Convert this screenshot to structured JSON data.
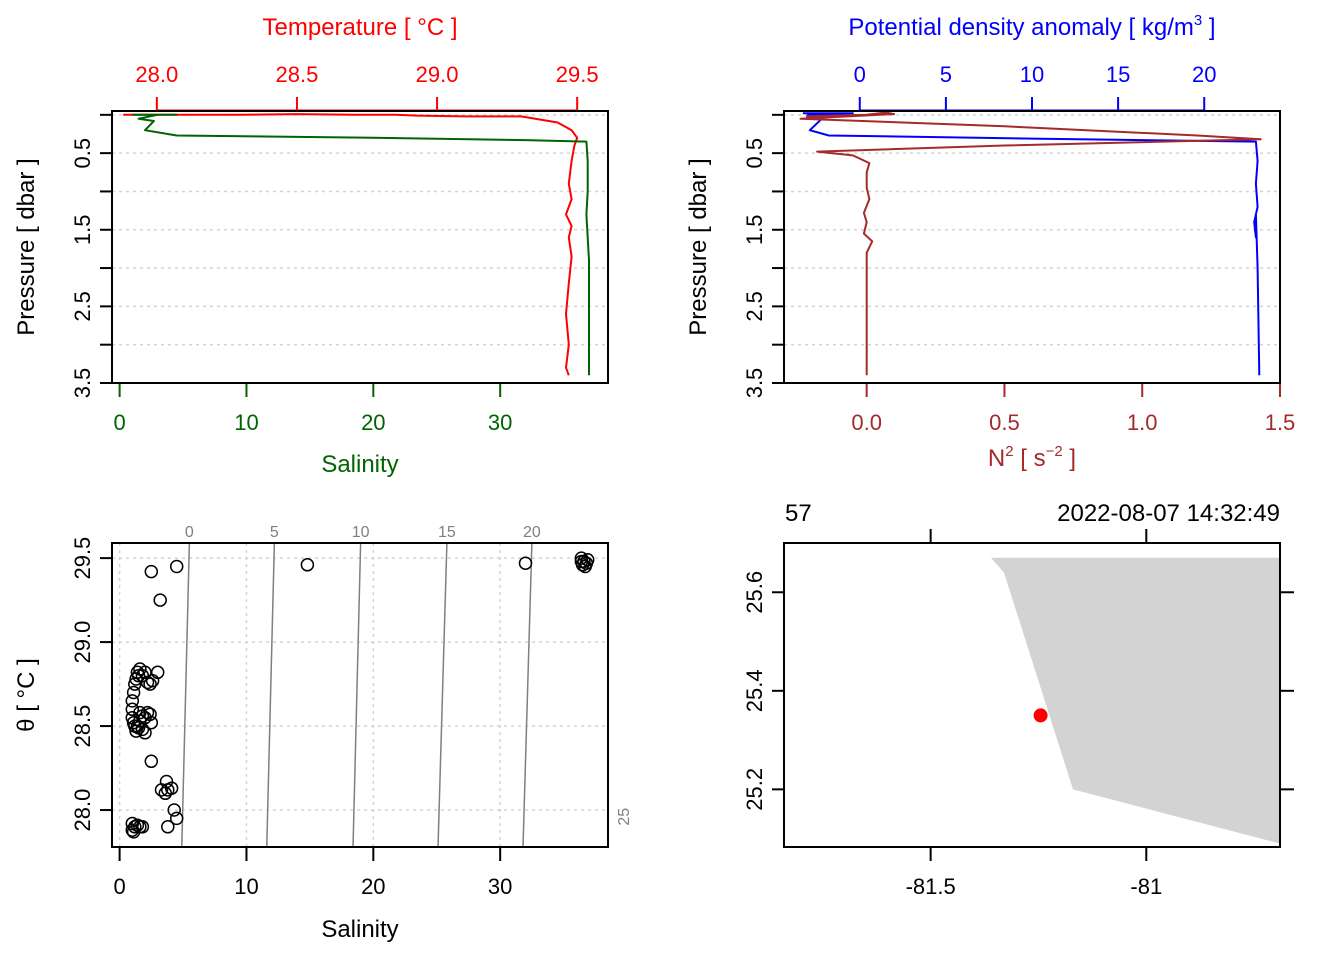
{
  "chart_data": [
    {
      "id": "profile-ts",
      "type": "line",
      "ylabel": "Pressure [ dbar ]",
      "ylim": [
        3.5,
        -0.05
      ],
      "y_ticks": [
        0,
        0.5,
        1,
        1.5,
        2,
        2.5,
        3,
        3.5
      ],
      "y_tick_labels": [
        "",
        "0.5",
        "",
        "1.5",
        "",
        "2.5",
        "",
        "3.5"
      ],
      "grid": true,
      "top_axis": {
        "title": "Temperature [ °C ]",
        "color": "#ff0000",
        "lim": [
          27.84,
          29.61
        ],
        "ticks": [
          28.0,
          28.5,
          29.0,
          29.5
        ],
        "tick_labels": [
          "28.0",
          "28.5",
          "29.0",
          "29.5"
        ]
      },
      "bottom_axis": {
        "title": "Salinity",
        "color": "#006400",
        "lim": [
          -0.6,
          38.5
        ],
        "ticks": [
          0,
          10,
          20,
          30
        ],
        "tick_labels": [
          "0",
          "10",
          "20",
          "30"
        ]
      },
      "series": [
        {
          "name": "Temperature",
          "axis": "top",
          "color": "#ff0000",
          "points": [
            [
              27.88,
              0.0
            ],
            [
              28.0,
              0.0
            ],
            [
              28.3,
              0.0
            ],
            [
              28.5,
              -0.01
            ],
            [
              28.7,
              0.0
            ],
            [
              28.85,
              0.0
            ],
            [
              28.93,
              0.01
            ],
            [
              29.1,
              0.02
            ],
            [
              29.3,
              0.02
            ],
            [
              29.43,
              0.1
            ],
            [
              29.48,
              0.2
            ],
            [
              29.5,
              0.3
            ],
            [
              29.49,
              0.4
            ],
            [
              29.48,
              0.6
            ],
            [
              29.47,
              0.9
            ],
            [
              29.48,
              1.1
            ],
            [
              29.46,
              1.3
            ],
            [
              29.48,
              1.45
            ],
            [
              29.47,
              1.6
            ],
            [
              29.48,
              1.85
            ],
            [
              29.47,
              2.2
            ],
            [
              29.46,
              2.6
            ],
            [
              29.47,
              3.0
            ],
            [
              29.46,
              3.3
            ],
            [
              29.47,
              3.4
            ]
          ]
        },
        {
          "name": "Salinity",
          "axis": "bottom",
          "color": "#006400",
          "points": [
            [
              1.0,
              0.0
            ],
            [
              2.5,
              0.0
            ],
            [
              4.5,
              0.0
            ],
            [
              3.0,
              0.0
            ],
            [
              1.5,
              0.05
            ],
            [
              2.7,
              0.08
            ],
            [
              2.0,
              0.2
            ],
            [
              4.5,
              0.27
            ],
            [
              20.0,
              0.3
            ],
            [
              32.0,
              0.33
            ],
            [
              36.8,
              0.35
            ],
            [
              36.9,
              0.6
            ],
            [
              36.9,
              1.0
            ],
            [
              36.8,
              1.3
            ],
            [
              36.9,
              1.6
            ],
            [
              37.0,
              1.9
            ],
            [
              37.0,
              3.4
            ]
          ]
        }
      ]
    },
    {
      "id": "profile-density",
      "type": "line",
      "ylabel": "Pressure [ dbar ]",
      "ylim": [
        3.5,
        -0.05
      ],
      "y_ticks": [
        0,
        0.5,
        1,
        1.5,
        2,
        2.5,
        3,
        3.5
      ],
      "y_tick_labels": [
        "",
        "0.5",
        "",
        "1.5",
        "",
        "2.5",
        "",
        "3.5"
      ],
      "grid": true,
      "top_axis": {
        "title": "Potential density anomaly [ kg/m³ ]",
        "title_main": "Potential density anomaly [ kg/m",
        "title_sup": "3",
        "title_end": " ]",
        "color": "#0000ff",
        "lim": [
          -4.4,
          24.4
        ],
        "ticks": [
          0,
          5,
          10,
          15,
          20
        ],
        "tick_labels": [
          "0",
          "5",
          "10",
          "15",
          "20"
        ]
      },
      "bottom_axis": {
        "title": "N² [ s⁻² ]",
        "title_main": "N",
        "title_sup": "2",
        "title_mid": " [ s",
        "title_sup2": "−2",
        "title_end": " ]",
        "color": "#a52a2a",
        "lim": [
          -0.3,
          1.5
        ],
        "ticks": [
          0.0,
          0.5,
          1.0,
          1.5
        ],
        "tick_labels": [
          "0.0",
          "0.5",
          "1.0",
          "1.5"
        ]
      },
      "series": [
        {
          "name": "Potential density anomaly",
          "axis": "top",
          "color": "#0000ff",
          "points": [
            [
              -3.3,
              -0.02
            ],
            [
              -0.4,
              -0.02
            ],
            [
              -3.0,
              0.0
            ],
            [
              -2.2,
              0.05
            ],
            [
              -2.9,
              0.2
            ],
            [
              -1.8,
              0.27
            ],
            [
              10.0,
              0.31
            ],
            [
              23.0,
              0.35
            ],
            [
              23.1,
              0.6
            ],
            [
              23.0,
              0.9
            ],
            [
              23.1,
              1.2
            ],
            [
              22.9,
              1.4
            ],
            [
              23.0,
              1.6
            ],
            [
              23.0,
              1.3
            ],
            [
              23.1,
              2.0
            ],
            [
              23.2,
              3.4
            ]
          ]
        },
        {
          "name": "N2",
          "axis": "bottom",
          "color": "#a52a2a",
          "points": [
            [
              -0.22,
              0.02
            ],
            [
              0.0,
              0.0
            ],
            [
              0.07,
              -0.03
            ],
            [
              0.1,
              -0.01
            ],
            [
              -0.24,
              0.05
            ],
            [
              0.5,
              0.15
            ],
            [
              1.2,
              0.27
            ],
            [
              1.43,
              0.32
            ],
            [
              0.5,
              0.4
            ],
            [
              -0.18,
              0.48
            ],
            [
              -0.05,
              0.53
            ],
            [
              0.01,
              0.63
            ],
            [
              0.0,
              0.75
            ],
            [
              0.0,
              0.95
            ],
            [
              0.01,
              1.1
            ],
            [
              -0.01,
              1.28
            ],
            [
              0.0,
              1.4
            ],
            [
              -0.01,
              1.55
            ],
            [
              0.02,
              1.65
            ],
            [
              0.0,
              1.8
            ],
            [
              0.0,
              2.2
            ],
            [
              0.0,
              3.4
            ]
          ]
        }
      ]
    },
    {
      "id": "ts-diagram",
      "type": "scatter",
      "xlabel": "Salinity",
      "ylabel": "θ [ °C ]",
      "xlim": [
        -0.6,
        38.5
      ],
      "ylim": [
        27.78,
        29.59
      ],
      "x_ticks": [
        0,
        10,
        20,
        30
      ],
      "x_tick_labels": [
        "0",
        "10",
        "20",
        "30"
      ],
      "y_ticks": [
        28.0,
        28.5,
        29.0,
        29.5
      ],
      "y_tick_labels": [
        "28.0",
        "28.5",
        "29.0",
        "29.5"
      ],
      "grid": true,
      "isopycnals": {
        "color": "#808080",
        "levels": [
          0,
          5,
          10,
          15,
          20,
          25
        ],
        "labels": [
          "0",
          "5",
          "10",
          "15",
          "20",
          "25"
        ],
        "lines": [
          {
            "label": "0",
            "top_s": 5.5,
            "bottom_s": 4.9
          },
          {
            "label": "5",
            "top_s": 12.2,
            "bottom_s": 11.6
          },
          {
            "label": "10",
            "top_s": 19.0,
            "bottom_s": 18.4
          },
          {
            "label": "15",
            "top_s": 25.8,
            "bottom_s": 25.1
          },
          {
            "label": "20",
            "top_s": 32.5,
            "bottom_s": 31.8
          }
        ]
      },
      "points": [
        [
          4.5,
          29.45
        ],
        [
          2.5,
          29.42
        ],
        [
          3.2,
          29.25
        ],
        [
          14.8,
          29.46
        ],
        [
          32.0,
          29.47
        ],
        [
          36.4,
          29.5
        ],
        [
          36.6,
          29.48
        ],
        [
          36.8,
          29.47
        ],
        [
          36.5,
          29.46
        ],
        [
          36.9,
          29.49
        ],
        [
          36.7,
          29.45
        ],
        [
          36.4,
          29.48
        ],
        [
          1.4,
          28.82
        ],
        [
          1.6,
          28.84
        ],
        [
          1.5,
          28.8
        ],
        [
          1.3,
          28.78
        ],
        [
          1.2,
          28.75
        ],
        [
          1.1,
          28.7
        ],
        [
          1.0,
          28.65
        ],
        [
          1.0,
          28.6
        ],
        [
          1.0,
          28.55
        ],
        [
          1.1,
          28.52
        ],
        [
          1.2,
          28.5
        ],
        [
          1.3,
          28.47
        ],
        [
          1.5,
          28.49
        ],
        [
          1.8,
          28.8
        ],
        [
          2.0,
          28.82
        ],
        [
          2.2,
          28.76
        ],
        [
          2.4,
          28.75
        ],
        [
          3.0,
          28.82
        ],
        [
          2.6,
          28.77
        ],
        [
          1.6,
          28.58
        ],
        [
          1.8,
          28.56
        ],
        [
          2.0,
          28.55
        ],
        [
          2.2,
          28.58
        ],
        [
          2.4,
          28.57
        ],
        [
          2.5,
          28.52
        ],
        [
          1.6,
          28.53
        ],
        [
          1.8,
          28.48
        ],
        [
          2.0,
          28.46
        ],
        [
          1.4,
          28.5
        ],
        [
          2.5,
          28.29
        ],
        [
          3.7,
          28.17
        ],
        [
          3.3,
          28.12
        ],
        [
          3.8,
          28.12
        ],
        [
          4.1,
          28.13
        ],
        [
          3.6,
          28.1
        ],
        [
          4.3,
          28.0
        ],
        [
          4.5,
          27.95
        ],
        [
          3.8,
          27.9
        ],
        [
          1.0,
          27.92
        ],
        [
          1.2,
          27.9
        ],
        [
          1.0,
          27.88
        ],
        [
          1.4,
          27.91
        ],
        [
          1.6,
          27.9
        ],
        [
          1.8,
          27.9
        ],
        [
          1.1,
          27.87
        ]
      ]
    },
    {
      "id": "station-map",
      "type": "scatter",
      "top_left_label": "57",
      "top_right_label": "2022-08-07 14:32:49",
      "xlim": [
        -81.84,
        -80.69
      ],
      "ylim": [
        25.083,
        25.7
      ],
      "x_ticks": [
        -81.5,
        -81.0
      ],
      "x_tick_labels": [
        "-81.5",
        "-81"
      ],
      "y_ticks": [
        25.2,
        25.4,
        25.6
      ],
      "y_tick_labels": [
        "25.2",
        "25.4",
        "25.6"
      ],
      "land_color": "#d3d3d3",
      "station_color": "#ff0000",
      "station": {
        "lon": -81.245,
        "lat": 25.35
      },
      "coastline": [
        [
          -81.36,
          25.67
        ],
        [
          -81.33,
          25.64
        ],
        [
          -81.17,
          25.2
        ],
        [
          -80.69,
          25.09
        ],
        [
          -80.69,
          25.67
        ]
      ]
    }
  ]
}
